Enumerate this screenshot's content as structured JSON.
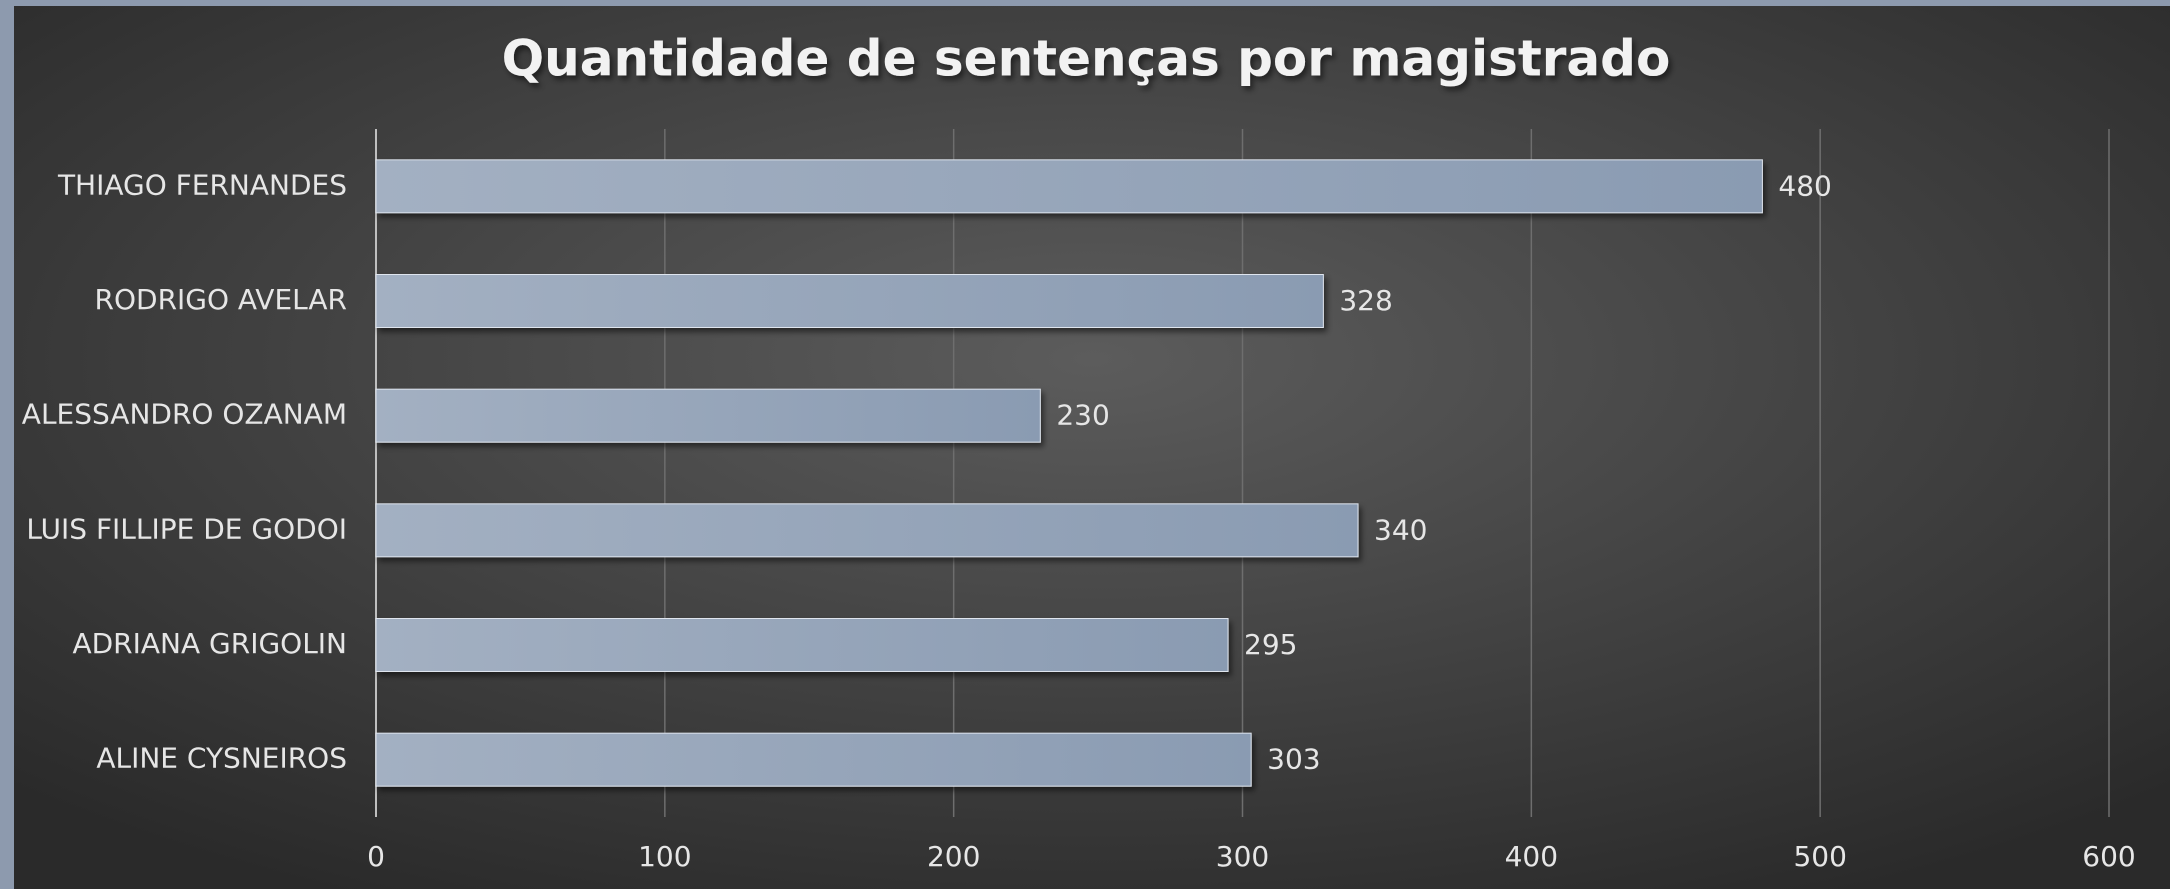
{
  "chart_data": {
    "type": "bar",
    "orientation": "horizontal",
    "title": "Quantidade de sentenças por magistrado",
    "categories": [
      "THIAGO FERNANDES",
      "RODRIGO AVELAR",
      "ALESSANDRO OZANAM",
      "LUIS FILLIPE DE GODOI",
      "ADRIANA GRIGOLIN",
      "ALINE CYSNEIROS"
    ],
    "values": [
      480,
      328,
      230,
      340,
      295,
      303
    ],
    "color": "#8c9db3",
    "xlim": [
      0,
      600
    ],
    "xticks": [
      0,
      100,
      200,
      300,
      400,
      500,
      600
    ],
    "grid": true
  }
}
